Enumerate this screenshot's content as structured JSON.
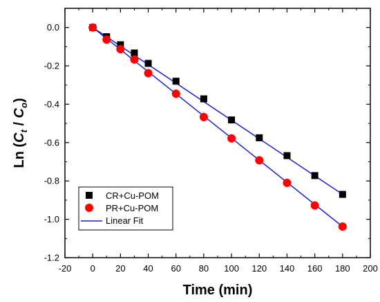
{
  "chart_data": {
    "type": "scatter",
    "xlabel": "Time (min)",
    "ylabel": {
      "prefix": "Ln (",
      "num": "C",
      "num_sub": "t",
      "sep": " / ",
      "den": "C",
      "den_sub": "o",
      "suffix": ")"
    },
    "xlim": [
      -20,
      200
    ],
    "ylim": [
      -1.2,
      0.1
    ],
    "xticks": [
      -20,
      0,
      20,
      40,
      60,
      80,
      100,
      120,
      140,
      160,
      180,
      200
    ],
    "yticks": [
      0.0,
      -0.2,
      -0.4,
      -0.6,
      -0.8,
      -1.0,
      -1.2
    ],
    "grid": false,
    "legend_position": "bottom-left",
    "series": [
      {
        "name": "CR+Cu-POM",
        "marker": "square",
        "color": "#000000",
        "x": [
          0,
          10,
          20,
          30,
          40,
          60,
          80,
          100,
          120,
          140,
          160,
          180
        ],
        "y": [
          0.0,
          -0.048,
          -0.09,
          -0.133,
          -0.187,
          -0.28,
          -0.372,
          -0.482,
          -0.575,
          -0.668,
          -0.772,
          -0.87
        ]
      },
      {
        "name": "PR+Cu-POM",
        "marker": "circle",
        "color": "#ff0000",
        "x": [
          0,
          10,
          20,
          30,
          40,
          60,
          80,
          100,
          120,
          140,
          160,
          180
        ],
        "y": [
          0.0,
          -0.063,
          -0.113,
          -0.167,
          -0.238,
          -0.345,
          -0.467,
          -0.578,
          -0.692,
          -0.81,
          -0.928,
          -1.038
        ]
      }
    ],
    "fit": {
      "name": "Linear Fit",
      "color": "#1f1fcf",
      "lines": [
        {
          "x": [
            0,
            180
          ],
          "y": [
            0.0,
            -0.87
          ]
        },
        {
          "x": [
            0,
            180
          ],
          "y": [
            0.0,
            -1.038
          ]
        }
      ]
    }
  }
}
